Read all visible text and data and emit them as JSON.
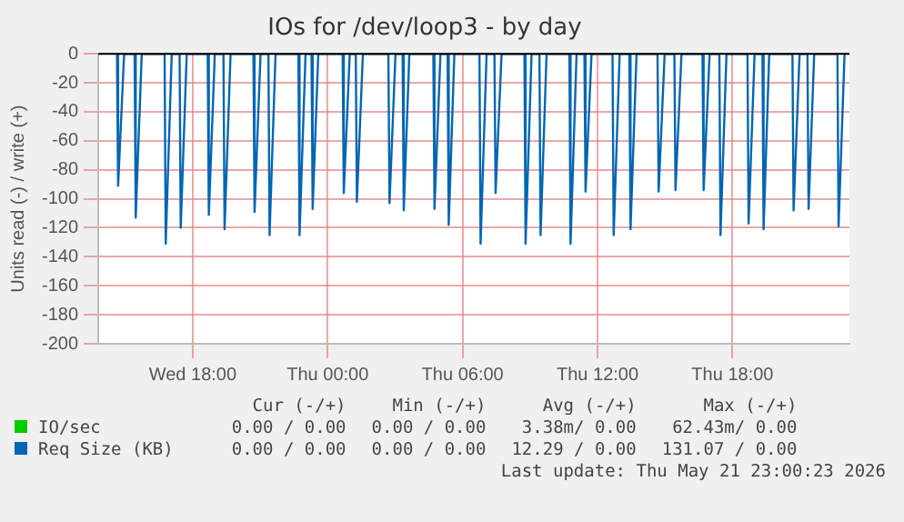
{
  "chart_data": {
    "type": "line",
    "title": "IOs for /dev/loop3 - by day",
    "ylabel": "Units read (-) / write (+)",
    "xlim": [
      "2026-05-20T13:48",
      "2026-05-21T23:12"
    ],
    "xticks": [
      {
        "value": "2026-05-20T18:00",
        "label": "Wed 18:00"
      },
      {
        "value": "2026-05-21T00:00",
        "label": "Thu 00:00"
      },
      {
        "value": "2026-05-21T06:00",
        "label": "Thu 06:00"
      },
      {
        "value": "2026-05-21T12:00",
        "label": "Thu 12:00"
      },
      {
        "value": "2026-05-21T18:00",
        "label": "Thu 18:00"
      }
    ],
    "ylim": [
      -200,
      0
    ],
    "yticks": [
      -200,
      -180,
      -160,
      -140,
      -120,
      -100,
      -80,
      -60,
      -40,
      -20,
      0
    ],
    "grid": true,
    "legend": "bottom",
    "marker": "none",
    "series": [
      {
        "name": "IO/sec",
        "color": "#00cc00"
      },
      {
        "name": "Req Size (KB)",
        "color": "#0066b3",
        "x": [
          "2026-05-20T14:38",
          "2026-05-20T14:41",
          "2026-05-20T14:57",
          "2026-05-20T15:25",
          "2026-05-20T15:28",
          "2026-05-20T15:44",
          "2026-05-20T16:45",
          "2026-05-20T16:48",
          "2026-05-20T17:04",
          "2026-05-20T17:25",
          "2026-05-20T17:28",
          "2026-05-20T17:44",
          "2026-05-20T18:40",
          "2026-05-20T18:43",
          "2026-05-20T18:59",
          "2026-05-20T19:22",
          "2026-05-20T19:25",
          "2026-05-20T19:41",
          "2026-05-20T20:42",
          "2026-05-20T20:45",
          "2026-05-20T21:01",
          "2026-05-20T21:22",
          "2026-05-20T21:25",
          "2026-05-20T21:41",
          "2026-05-20T22:42",
          "2026-05-20T22:45",
          "2026-05-20T23:01",
          "2026-05-20T23:17",
          "2026-05-20T23:20",
          "2026-05-20T23:35",
          "2026-05-21T00:40",
          "2026-05-21T00:43",
          "2026-05-21T00:59",
          "2026-05-21T01:15",
          "2026-05-21T01:18",
          "2026-05-21T01:34",
          "2026-05-21T02:42",
          "2026-05-21T02:45",
          "2026-05-21T03:01",
          "2026-05-21T03:20",
          "2026-05-21T03:23",
          "2026-05-21T03:38",
          "2026-05-21T04:42",
          "2026-05-21T04:45",
          "2026-05-21T05:01",
          "2026-05-21T05:20",
          "2026-05-21T05:23",
          "2026-05-21T05:38",
          "2026-05-21T06:45",
          "2026-05-21T06:48",
          "2026-05-21T07:04",
          "2026-05-21T07:25",
          "2026-05-21T07:28",
          "2026-05-21T07:44",
          "2026-05-21T08:45",
          "2026-05-21T08:48",
          "2026-05-21T09:04",
          "2026-05-21T09:25",
          "2026-05-21T09:28",
          "2026-05-21T09:44",
          "2026-05-21T10:45",
          "2026-05-21T10:48",
          "2026-05-21T11:04",
          "2026-05-21T11:25",
          "2026-05-21T11:28",
          "2026-05-21T11:44",
          "2026-05-21T12:40",
          "2026-05-21T12:43",
          "2026-05-21T12:59",
          "2026-05-21T13:25",
          "2026-05-21T13:28",
          "2026-05-21T13:44",
          "2026-05-21T14:40",
          "2026-05-21T14:43",
          "2026-05-21T14:59",
          "2026-05-21T15:25",
          "2026-05-21T15:28",
          "2026-05-21T15:44",
          "2026-05-21T16:40",
          "2026-05-21T16:43",
          "2026-05-21T16:59",
          "2026-05-21T17:25",
          "2026-05-21T17:28",
          "2026-05-21T17:44",
          "2026-05-21T18:40",
          "2026-05-21T18:43",
          "2026-05-21T18:59",
          "2026-05-21T19:20",
          "2026-05-21T19:23",
          "2026-05-21T19:38",
          "2026-05-21T20:40",
          "2026-05-21T20:43",
          "2026-05-21T20:59",
          "2026-05-21T21:20",
          "2026-05-21T21:23",
          "2026-05-21T21:38",
          "2026-05-21T22:40",
          "2026-05-21T22:43",
          "2026-05-21T22:59"
        ],
        "values": [
          0,
          -91,
          0,
          0,
          -113,
          0,
          0,
          -131,
          0,
          0,
          -120,
          0,
          0,
          -111,
          0,
          0,
          -121,
          0,
          0,
          -109,
          0,
          0,
          -125,
          0,
          0,
          -125,
          0,
          0,
          -107,
          0,
          0,
          -96,
          0,
          0,
          -102,
          0,
          0,
          -103,
          0,
          0,
          -108,
          0,
          0,
          -107,
          0,
          0,
          -118,
          0,
          0,
          -131,
          0,
          0,
          -96,
          0,
          0,
          -131,
          0,
          0,
          -125,
          0,
          0,
          -131,
          0,
          0,
          -95,
          0,
          0,
          -125,
          0,
          0,
          -121,
          0,
          0,
          -95,
          0,
          0,
          -94,
          0,
          0,
          -94,
          0,
          0,
          -125,
          0,
          0,
          -117,
          0,
          0,
          -121,
          0,
          0,
          -108,
          0,
          0,
          -107,
          0,
          0,
          -119,
          0
        ]
      }
    ],
    "annotations": [
      "Cur (-/+)",
      "Min (-/+)",
      "Avg (-/+)",
      "Max (-/+)",
      "0.00 / 0.00",
      "0.00 / 0.00",
      "3.38m/ 0.00",
      "62.43m/ 0.00",
      "0.00 / 0.00",
      "0.00 / 0.00",
      "12.29 / 0.00",
      "131.07 / 0.00",
      "Last update: Thu May 21 23:00:23 2026"
    ]
  }
}
